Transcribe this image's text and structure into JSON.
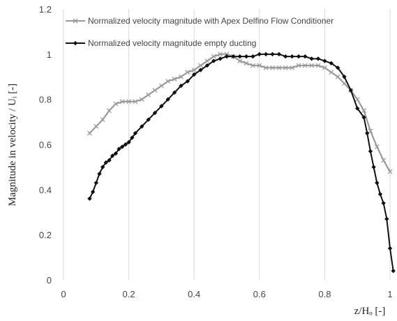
{
  "chart_data": {
    "type": "line",
    "title": "",
    "ylabel": "Magnitude in velocity / Uᵢ [-]",
    "xlabel": "z/Hₒ [-]",
    "xlim": [
      0,
      1
    ],
    "ylim": [
      0,
      1.2
    ],
    "x_ticks": [
      "0",
      "0.2",
      "0.4",
      "0.6",
      "0.8",
      "1"
    ],
    "y_ticks": [
      "0",
      "0.2",
      "0.4",
      "0.6",
      "0.8",
      "1",
      "1.2"
    ],
    "grid": "vertical",
    "legend_position": "top",
    "series": [
      {
        "name": "Normalized velocity magnitude with Apex Delfino Flow Conditioner",
        "color": "#9a9a9a",
        "marker": "x",
        "points": [
          [
            0.08,
            0.65
          ],
          [
            0.1,
            0.68
          ],
          [
            0.12,
            0.71
          ],
          [
            0.14,
            0.75
          ],
          [
            0.16,
            0.78
          ],
          [
            0.18,
            0.79
          ],
          [
            0.2,
            0.79
          ],
          [
            0.22,
            0.79
          ],
          [
            0.24,
            0.8
          ],
          [
            0.26,
            0.82
          ],
          [
            0.28,
            0.84
          ],
          [
            0.3,
            0.86
          ],
          [
            0.32,
            0.88
          ],
          [
            0.34,
            0.89
          ],
          [
            0.36,
            0.9
          ],
          [
            0.38,
            0.92
          ],
          [
            0.4,
            0.93
          ],
          [
            0.42,
            0.95
          ],
          [
            0.44,
            0.97
          ],
          [
            0.46,
            0.99
          ],
          [
            0.48,
            1.0
          ],
          [
            0.5,
            1.0
          ],
          [
            0.52,
            0.99
          ],
          [
            0.54,
            0.97
          ],
          [
            0.56,
            0.96
          ],
          [
            0.58,
            0.95
          ],
          [
            0.6,
            0.95
          ],
          [
            0.62,
            0.94
          ],
          [
            0.64,
            0.94
          ],
          [
            0.66,
            0.94
          ],
          [
            0.68,
            0.94
          ],
          [
            0.7,
            0.94
          ],
          [
            0.72,
            0.95
          ],
          [
            0.74,
            0.95
          ],
          [
            0.76,
            0.95
          ],
          [
            0.78,
            0.95
          ],
          [
            0.8,
            0.94
          ],
          [
            0.82,
            0.92
          ],
          [
            0.84,
            0.9
          ],
          [
            0.86,
            0.87
          ],
          [
            0.88,
            0.84
          ],
          [
            0.9,
            0.8
          ],
          [
            0.92,
            0.75
          ],
          [
            0.94,
            0.66
          ],
          [
            0.96,
            0.59
          ],
          [
            0.98,
            0.53
          ],
          [
            1.0,
            0.48
          ]
        ]
      },
      {
        "name": "Normalized velocity magnitude empty ducting",
        "color": "#111111",
        "marker": "diamond",
        "points": [
          [
            0.08,
            0.36
          ],
          [
            0.09,
            0.39
          ],
          [
            0.1,
            0.43
          ],
          [
            0.11,
            0.47
          ],
          [
            0.12,
            0.5
          ],
          [
            0.13,
            0.52
          ],
          [
            0.14,
            0.53
          ],
          [
            0.15,
            0.55
          ],
          [
            0.16,
            0.56
          ],
          [
            0.17,
            0.58
          ],
          [
            0.18,
            0.59
          ],
          [
            0.19,
            0.6
          ],
          [
            0.2,
            0.61
          ],
          [
            0.21,
            0.63
          ],
          [
            0.22,
            0.65
          ],
          [
            0.24,
            0.68
          ],
          [
            0.26,
            0.71
          ],
          [
            0.28,
            0.74
          ],
          [
            0.3,
            0.77
          ],
          [
            0.32,
            0.8
          ],
          [
            0.34,
            0.83
          ],
          [
            0.36,
            0.86
          ],
          [
            0.38,
            0.88
          ],
          [
            0.4,
            0.91
          ],
          [
            0.42,
            0.93
          ],
          [
            0.44,
            0.95
          ],
          [
            0.46,
            0.97
          ],
          [
            0.48,
            0.98
          ],
          [
            0.5,
            0.99
          ],
          [
            0.52,
            0.99
          ],
          [
            0.54,
            0.99
          ],
          [
            0.56,
            0.99
          ],
          [
            0.58,
            0.99
          ],
          [
            0.6,
            1.0
          ],
          [
            0.62,
            1.0
          ],
          [
            0.64,
            1.0
          ],
          [
            0.66,
            1.0
          ],
          [
            0.68,
            0.99
          ],
          [
            0.7,
            0.99
          ],
          [
            0.72,
            0.99
          ],
          [
            0.74,
            0.99
          ],
          [
            0.76,
            0.98
          ],
          [
            0.78,
            0.98
          ],
          [
            0.8,
            0.97
          ],
          [
            0.82,
            0.96
          ],
          [
            0.84,
            0.94
          ],
          [
            0.86,
            0.9
          ],
          [
            0.88,
            0.84
          ],
          [
            0.9,
            0.76
          ],
          [
            0.92,
            0.72
          ],
          [
            0.93,
            0.65
          ],
          [
            0.94,
            0.57
          ],
          [
            0.95,
            0.5
          ],
          [
            0.96,
            0.43
          ],
          [
            0.97,
            0.38
          ],
          [
            0.98,
            0.34
          ],
          [
            0.99,
            0.27
          ],
          [
            1.0,
            0.14
          ],
          [
            1.01,
            0.04
          ]
        ]
      }
    ]
  }
}
